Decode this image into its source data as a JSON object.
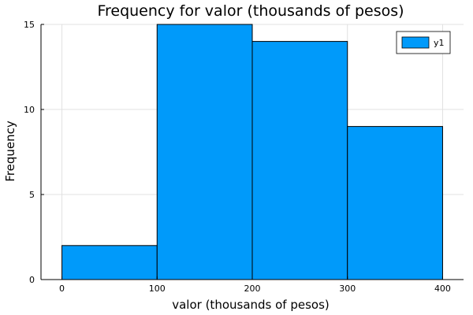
{
  "chart_data": {
    "type": "bar",
    "title": "Frequency for valor (thousands of pesos)",
    "xlabel": "valor (thousands of pesos)",
    "ylabel": "Frequency",
    "bins": [
      {
        "x0": 0,
        "x1": 100,
        "value": 2
      },
      {
        "x0": 100,
        "x1": 200,
        "value": 15
      },
      {
        "x0": 200,
        "x1": 300,
        "value": 14
      },
      {
        "x0": 300,
        "x1": 400,
        "value": 9
      }
    ],
    "series": [
      {
        "name": "y1",
        "values": [
          2,
          15,
          14,
          9
        ]
      }
    ],
    "xlim": [
      -22,
      422
    ],
    "ylim": [
      0,
      15
    ],
    "xticks": [
      0,
      100,
      200,
      300,
      400
    ],
    "yticks": [
      0,
      5,
      10,
      15
    ],
    "grid": true,
    "legend_position": "top-right",
    "colors": {
      "bar_fill": "#009AFA",
      "bar_stroke": "#000000",
      "grid": "#e0e0e0",
      "axis": "#000000"
    }
  }
}
